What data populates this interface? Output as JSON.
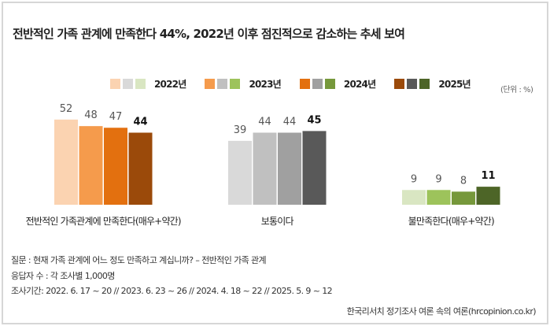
{
  "title": "전반적인 가족 관계에 만족한다 44%, 2022년 이후 점진적으로 감소하는 추세 보여",
  "unit": "(단위 : %)",
  "chart_data": {
    "type": "bar",
    "categories": [
      "전반적인 가족관계에 만족한다(매우+약간)",
      "보통이다",
      "불만족한다(매우+약간)"
    ],
    "series": [
      {
        "name": "2022년",
        "values": [
          52,
          39,
          9
        ]
      },
      {
        "name": "2023년",
        "values": [
          48,
          44,
          9
        ]
      },
      {
        "name": "2024년",
        "values": [
          47,
          44,
          8
        ]
      },
      {
        "name": "2025년",
        "values": [
          44,
          45,
          11
        ]
      }
    ],
    "colors": [
      [
        "#fbd3b1",
        "#f59b4c",
        "#e3700f",
        "#9b4a0a"
      ],
      [
        "#d9d9d9",
        "#c0c0c0",
        "#a0a0a0",
        "#595959"
      ],
      [
        "#d9e6c2",
        "#9dc35b",
        "#76983b",
        "#4d6527"
      ]
    ],
    "ylim": [
      0,
      60
    ],
    "grid": false,
    "legend": "top"
  },
  "notes": {
    "question": "질문 : 현재 가족 관계에 어느 정도 만족하고 계십니까? – 전반적인 가족 관계",
    "respondents": "응답자 수 : 각 조사별 1,000명",
    "period": "조사기간: 2022. 6. 17 ~ 20 // 2023. 6. 23 ~ 26 // 2024. 4. 18 ~ 22 // 2025. 5. 9  ~ 12"
  },
  "source": "한국리서치 정기조사 여론 속의 여론(hrcopinion.co.kr)"
}
